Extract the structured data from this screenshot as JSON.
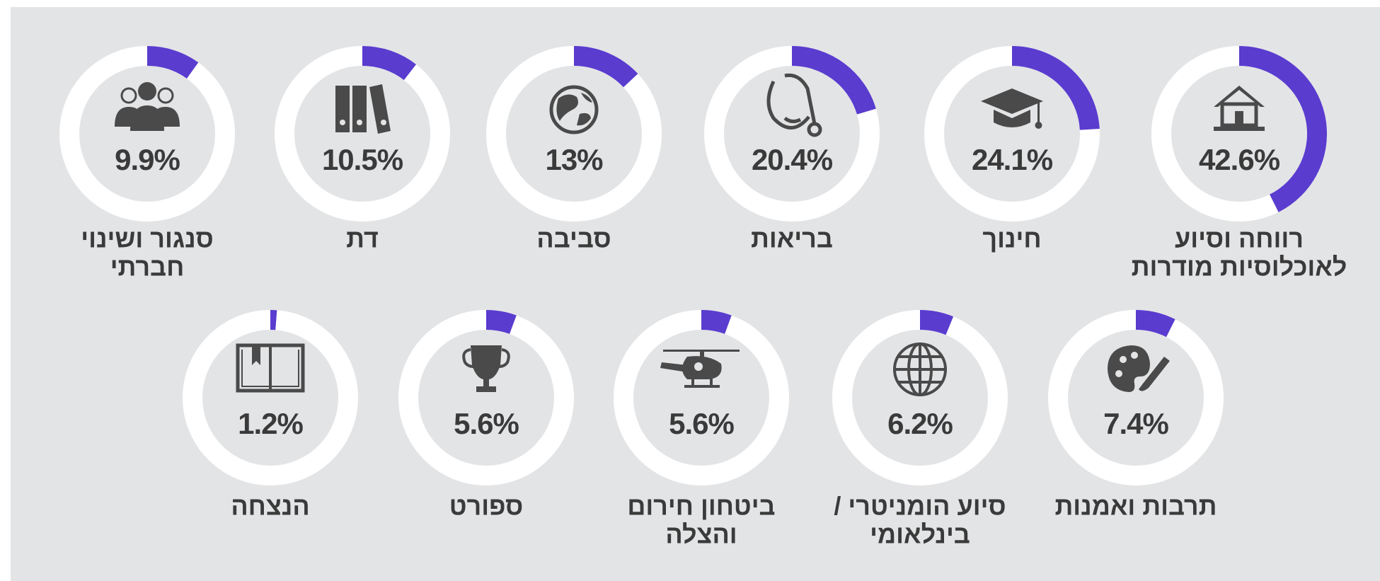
{
  "chart_data": {
    "type": "donut",
    "categories": [
      [
        "רווחה וסיוע",
        "לאוכלוסיות מודרות"
      ],
      [
        "חינוך"
      ],
      [
        "בריאות"
      ],
      [
        "סביבה"
      ],
      [
        "דת"
      ],
      [
        "סנגור ושינוי",
        "חברתי"
      ],
      [
        "תרבות ואמנות"
      ],
      [
        "סיוע הומניטרי /",
        "בינלאומי"
      ],
      [
        "ביטחון חירום",
        "והצלה"
      ],
      [
        "ספורט"
      ],
      [
        "הנצחה"
      ]
    ],
    "values": [
      42.6,
      24.1,
      20.4,
      13,
      10.5,
      9.9,
      7.4,
      6.2,
      5.6,
      5.6,
      1.2
    ],
    "value_labels": [
      "42.6%",
      "24.1%",
      "20.4%",
      "13%",
      "10.5%",
      "9.9%",
      "7.4%",
      "6.2%",
      "5.6%",
      "5.6%",
      "1.2%"
    ],
    "color": "#5a3ccf",
    "track_color": "#ffffff"
  }
}
